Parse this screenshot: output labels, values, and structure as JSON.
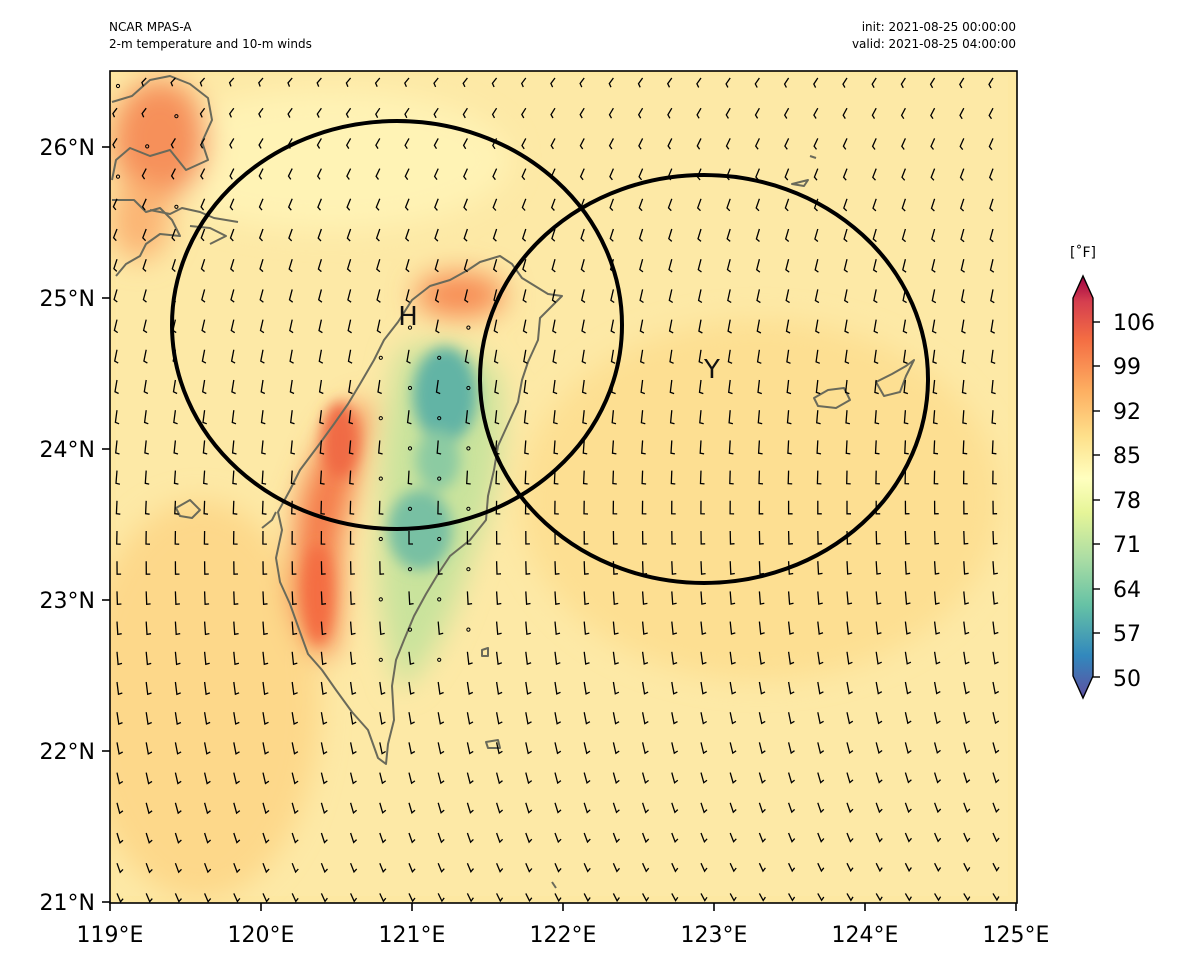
{
  "header": {
    "model": "NCAR MPAS-A",
    "field": "2-m temperature and 10-m winds",
    "init": "init: 2021-08-25 00:00:00",
    "valid": "valid: 2021-08-25 04:00:00"
  },
  "map": {
    "lon_range": [
      119,
      125
    ],
    "lat_range": [
      21,
      26.5
    ],
    "x_ticks": [
      "119°E",
      "120°E",
      "121°E",
      "122°E",
      "123°E",
      "124°E",
      "125°E"
    ],
    "y_ticks": [
      "21°N",
      "22°N",
      "23°N",
      "24°N",
      "25°N",
      "26°N"
    ],
    "markers": [
      {
        "label": "H",
        "lon": 120.9,
        "lat": 24.85
      },
      {
        "label": "Y",
        "lon": 122.95,
        "lat": 24.5
      }
    ],
    "colors": {
      "background_field": "#fde9a4",
      "warm": "#f47846",
      "cool": "#5fb5a6",
      "coast": "#6a6a5a",
      "circle": "#000000"
    }
  },
  "colorbar": {
    "unit": "[˚F]",
    "labels": [
      "106",
      "99",
      "92",
      "85",
      "78",
      "71",
      "64",
      "57",
      "50"
    ],
    "colormap": "Spectral_r"
  }
}
